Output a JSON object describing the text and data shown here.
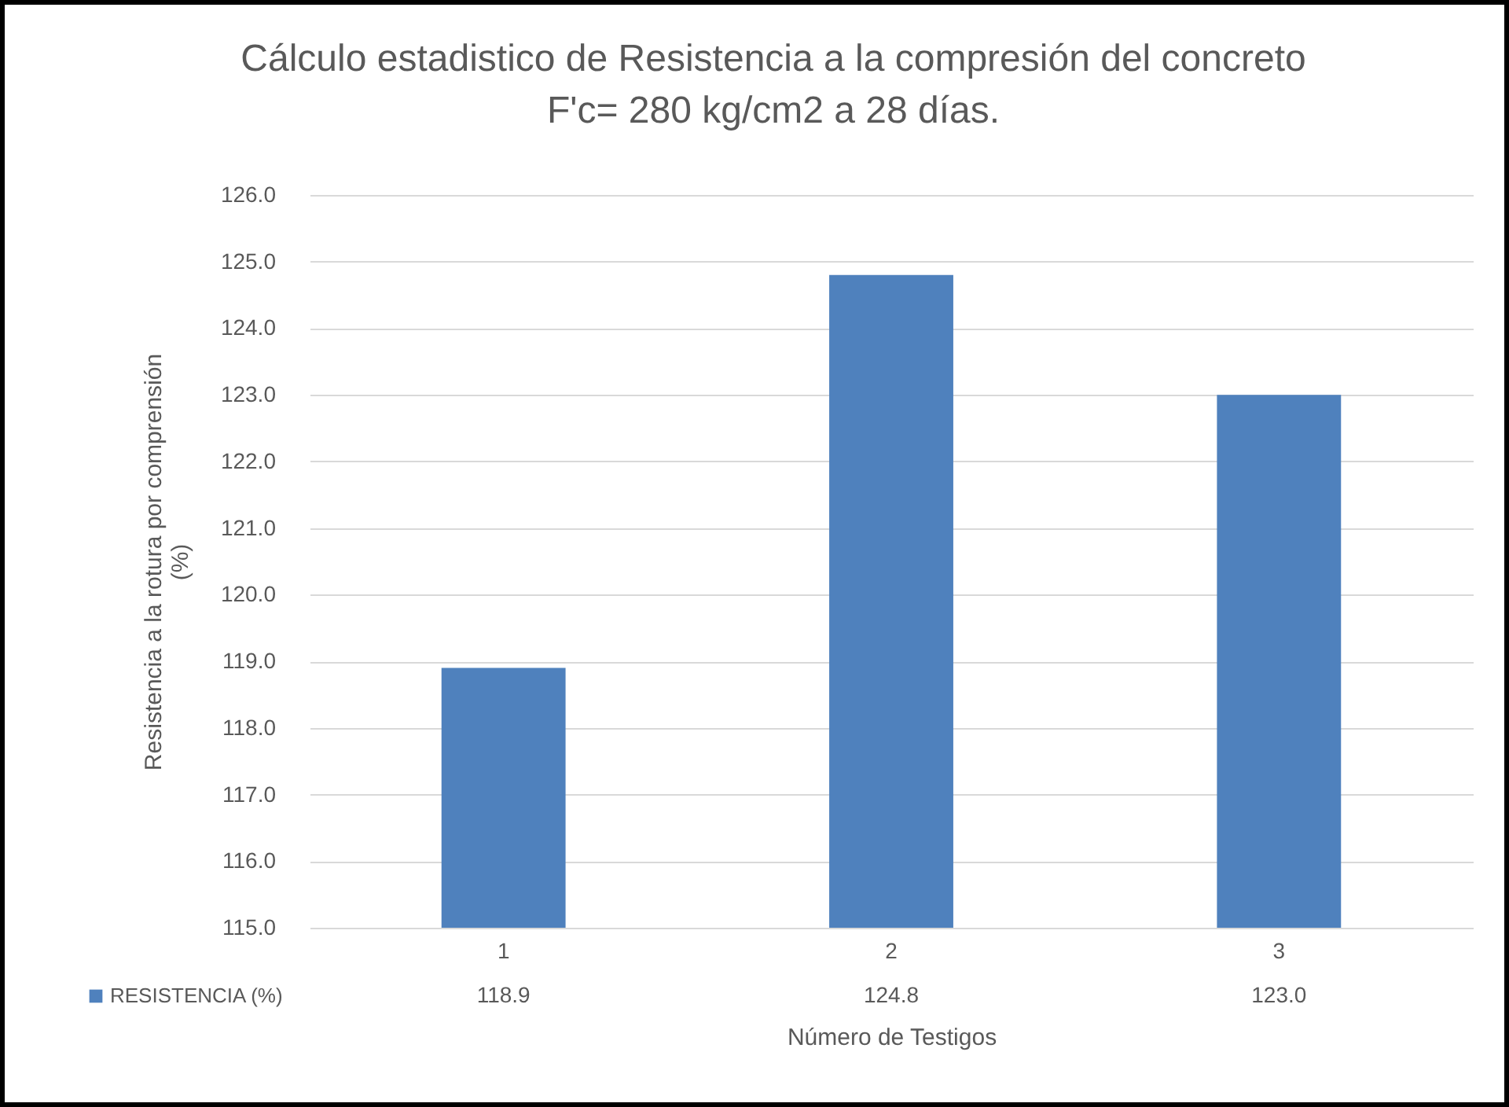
{
  "chart_data": {
    "type": "bar",
    "title": "Cálculo estadistico de Resistencia a la compresión del concreto\nF'c= 280 kg/cm2 a 28 días.",
    "xlabel": "Número de Testigos",
    "ylabel": "Resistencia a la rotura por comprensión\n(%)",
    "categories": [
      "1",
      "2",
      "3"
    ],
    "series": [
      {
        "name": "RESISTENCIA (%)",
        "color": "#4f81bd",
        "values": [
          118.9,
          124.8,
          123.0
        ]
      }
    ],
    "value_labels": [
      "118.9",
      "124.8",
      "123.0"
    ],
    "ylim": [
      115,
      126
    ],
    "yticks": [
      {
        "value": 115,
        "label": "115.0"
      },
      {
        "value": 116,
        "label": "116.0"
      },
      {
        "value": 117,
        "label": "117.0"
      },
      {
        "value": 118,
        "label": "118.0"
      },
      {
        "value": 119,
        "label": "119.0"
      },
      {
        "value": 120,
        "label": "120.0"
      },
      {
        "value": 121,
        "label": "121.0"
      },
      {
        "value": 122,
        "label": "122.0"
      },
      {
        "value": 123,
        "label": "123.0"
      },
      {
        "value": 124,
        "label": "124.0"
      },
      {
        "value": 125,
        "label": "125.0"
      },
      {
        "value": 126,
        "label": "126.0"
      }
    ],
    "grid": true,
    "legend": "bottom"
  }
}
